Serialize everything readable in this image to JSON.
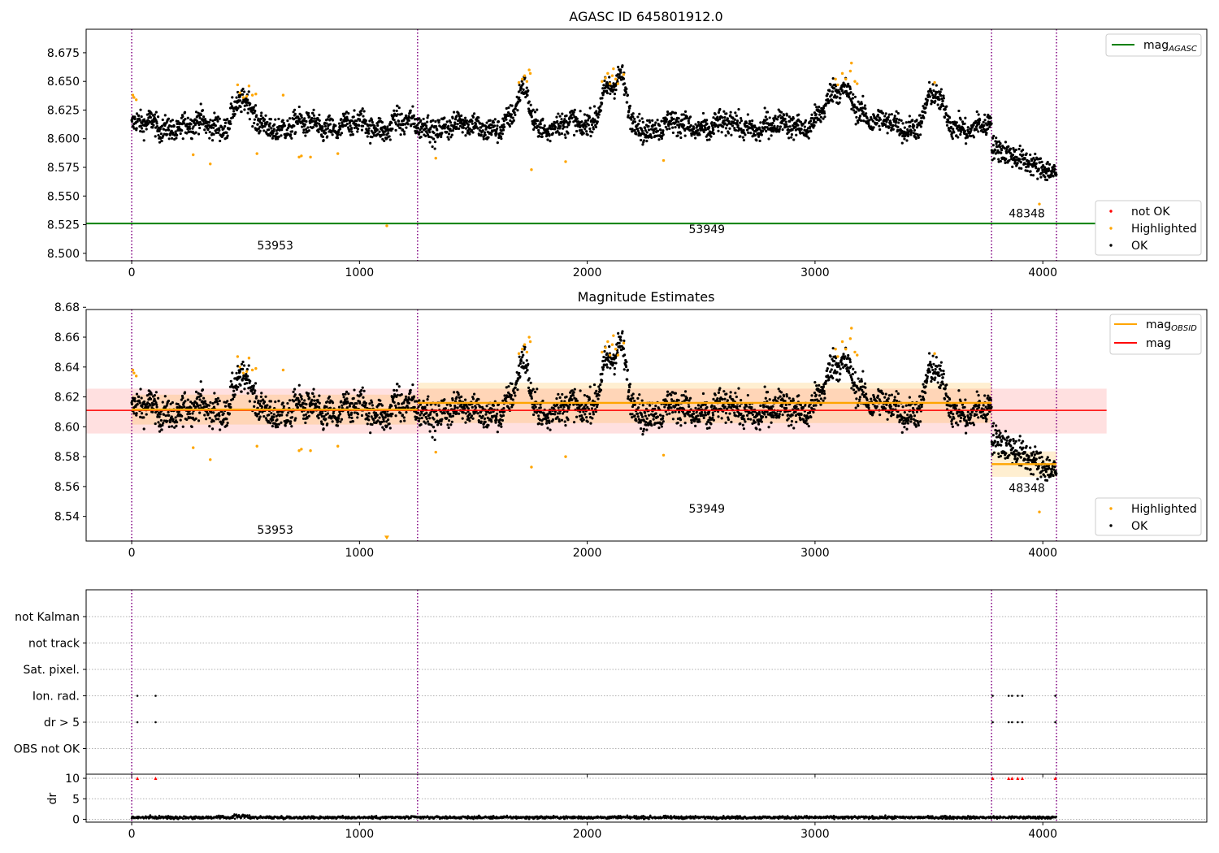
{
  "colors": {
    "ok": "#000000",
    "highlighted": "#ffa500",
    "not_ok": "#ff0000",
    "mag_agasc": "#008000",
    "mag_obsid": "#ffa500",
    "mag": "#ff0000",
    "obsid_line": "#800080",
    "grid": "#b0b0b0"
  },
  "chart_data": [
    {
      "type": "scatter",
      "title": "AGASC ID 645801912.0",
      "xlim": [
        -200,
        4720
      ],
      "ylim": [
        8.4935,
        8.6955
      ],
      "xticks": [
        "0",
        "1000",
        "2000",
        "3000",
        "4000"
      ],
      "yticks": [
        "8.500",
        "8.525",
        "8.550",
        "8.575",
        "8.600",
        "8.625",
        "8.650",
        "8.675"
      ],
      "legends": [
        {
          "placement": "top-right",
          "entries": [
            {
              "label": "mag",
              "sub": "AGASC",
              "kind": "line",
              "color": "#008000"
            }
          ]
        },
        {
          "placement": "bottom-right",
          "entries": [
            {
              "label": "not OK",
              "kind": "dot",
              "color": "#ff0000"
            },
            {
              "label": "Highlighted",
              "kind": "dot",
              "color": "#ffa500"
            },
            {
              "label": "OK",
              "kind": "dot",
              "color": "#000000"
            }
          ]
        }
      ],
      "hlines": [
        {
          "name": "mag_AGASC",
          "y": 8.526,
          "x": [
            -200,
            4280
          ],
          "color": "#008000"
        }
      ],
      "vlines": [
        0,
        1255,
        3775,
        4060
      ],
      "annotations": [
        {
          "text": "53953",
          "x": 630,
          "y": 8.5035
        },
        {
          "text": "53949",
          "x": 2525,
          "y": 8.5175
        },
        {
          "text": "48348",
          "x": 3930,
          "y": 8.5315
        }
      ],
      "highlighted_points": [
        [
          5,
          8.638
        ],
        [
          10,
          8.636
        ],
        [
          20,
          8.634
        ],
        [
          270,
          8.586
        ],
        [
          345,
          8.578
        ],
        [
          465,
          8.647
        ],
        [
          475,
          8.64
        ],
        [
          490,
          8.636
        ],
        [
          505,
          8.637
        ],
        [
          515,
          8.646
        ],
        [
          530,
          8.638
        ],
        [
          545,
          8.639
        ],
        [
          550,
          8.587
        ],
        [
          665,
          8.638
        ],
        [
          735,
          8.584
        ],
        [
          745,
          8.585
        ],
        [
          785,
          8.584
        ],
        [
          905,
          8.587
        ],
        [
          1120,
          8.524
        ],
        [
          1335,
          8.583
        ],
        [
          1700,
          8.649
        ],
        [
          1715,
          8.652
        ],
        [
          1725,
          8.655
        ],
        [
          1735,
          8.65
        ],
        [
          1745,
          8.66
        ],
        [
          1750,
          8.657
        ],
        [
          1755,
          8.573
        ],
        [
          1905,
          8.58
        ],
        [
          2065,
          8.65
        ],
        [
          2080,
          8.653
        ],
        [
          2090,
          8.657
        ],
        [
          2100,
          8.648
        ],
        [
          2110,
          8.655
        ],
        [
          2115,
          8.661
        ],
        [
          2125,
          8.652
        ],
        [
          2135,
          8.648
        ],
        [
          2160,
          8.656
        ],
        [
          2335,
          8.581
        ],
        [
          3090,
          8.652
        ],
        [
          3100,
          8.647
        ],
        [
          3120,
          8.657
        ],
        [
          3135,
          8.652
        ],
        [
          3155,
          8.659
        ],
        [
          3160,
          8.666
        ],
        [
          3175,
          8.65
        ],
        [
          3185,
          8.648
        ],
        [
          3525,
          8.649
        ],
        [
          3985,
          8.543
        ]
      ],
      "not_ok_points": []
    },
    {
      "type": "scatter",
      "title": "Magnitude Estimates",
      "xlim": [
        -200,
        4720
      ],
      "ylim": [
        8.5235,
        8.6785
      ],
      "xticks": [
        "0",
        "1000",
        "2000",
        "3000",
        "4000"
      ],
      "yticks": [
        "8.54",
        "8.56",
        "8.58",
        "8.60",
        "8.62",
        "8.64",
        "8.66",
        "8.68"
      ],
      "legends": [
        {
          "placement": "top-right",
          "entries": [
            {
              "label": "mag",
              "sub": "OBSID",
              "kind": "line",
              "color": "#ffa500"
            },
            {
              "label": "mag",
              "kind": "line",
              "color": "#ff0000"
            }
          ]
        },
        {
          "placement": "bottom-right",
          "entries": [
            {
              "label": "Highlighted",
              "kind": "dot",
              "color": "#ffa500"
            },
            {
              "label": "OK",
              "kind": "dot",
              "color": "#000000"
            }
          ]
        }
      ],
      "bands": [
        {
          "x": [
            -200,
            4280
          ],
          "y": [
            8.5955,
            8.6255
          ],
          "color": "#ff0000",
          "opacity": 0.12
        },
        {
          "x": [
            0,
            1255
          ],
          "y": [
            8.6015,
            8.6215
          ],
          "color": "#ffa500",
          "opacity": 0.18
        },
        {
          "x": [
            1255,
            3775
          ],
          "y": [
            8.6025,
            8.6295
          ],
          "color": "#ffa500",
          "opacity": 0.18
        },
        {
          "x": [
            3775,
            4060
          ],
          "y": [
            8.5665,
            8.5835
          ],
          "color": "#ffa500",
          "opacity": 0.18
        }
      ],
      "hlines": [
        {
          "name": "mag",
          "y": 8.611,
          "x": [
            -200,
            4280
          ],
          "color": "#ff0000"
        },
        {
          "name": "mag_OBSID 53953",
          "y": 8.6115,
          "x": [
            0,
            1255
          ],
          "color": "#ffa500"
        },
        {
          "name": "mag_OBSID 53949",
          "y": 8.616,
          "x": [
            1255,
            3775
          ],
          "color": "#ffa500"
        },
        {
          "name": "mag_OBSID 48348",
          "y": 8.575,
          "x": [
            3775,
            4060
          ],
          "color": "#ffa500"
        }
      ],
      "vlines": [
        0,
        1255,
        3775,
        4060
      ],
      "annotations": [
        {
          "text": "53953",
          "x": 630,
          "y": 8.5285
        },
        {
          "text": "53949",
          "x": 2525,
          "y": 8.5425
        },
        {
          "text": "48348",
          "x": 3930,
          "y": 8.5565
        }
      ],
      "highlighted_points": [
        [
          5,
          8.638
        ],
        [
          10,
          8.636
        ],
        [
          20,
          8.634
        ],
        [
          270,
          8.586
        ],
        [
          345,
          8.578
        ],
        [
          465,
          8.647
        ],
        [
          475,
          8.64
        ],
        [
          490,
          8.636
        ],
        [
          505,
          8.637
        ],
        [
          515,
          8.646
        ],
        [
          530,
          8.638
        ],
        [
          545,
          8.639
        ],
        [
          550,
          8.587
        ],
        [
          665,
          8.638
        ],
        [
          735,
          8.584
        ],
        [
          745,
          8.585
        ],
        [
          785,
          8.584
        ],
        [
          905,
          8.587
        ],
        [
          1335,
          8.583
        ],
        [
          1700,
          8.649
        ],
        [
          1715,
          8.652
        ],
        [
          1725,
          8.655
        ],
        [
          1735,
          8.65
        ],
        [
          1745,
          8.66
        ],
        [
          1750,
          8.657
        ],
        [
          1755,
          8.573
        ],
        [
          1905,
          8.58
        ],
        [
          2065,
          8.65
        ],
        [
          2080,
          8.653
        ],
        [
          2090,
          8.657
        ],
        [
          2100,
          8.648
        ],
        [
          2110,
          8.655
        ],
        [
          2115,
          8.661
        ],
        [
          2125,
          8.652
        ],
        [
          2135,
          8.648
        ],
        [
          2160,
          8.656
        ],
        [
          2335,
          8.581
        ],
        [
          3090,
          8.652
        ],
        [
          3100,
          8.647
        ],
        [
          3120,
          8.657
        ],
        [
          3135,
          8.652
        ],
        [
          3155,
          8.659
        ],
        [
          3160,
          8.666
        ],
        [
          3175,
          8.65
        ],
        [
          3185,
          8.648
        ],
        [
          3525,
          8.649
        ],
        [
          3985,
          8.543
        ]
      ],
      "clipped_marker": {
        "x": 1120,
        "y": 8.5255,
        "symbol": "down-triangle",
        "color": "#ffa500"
      }
    },
    {
      "type": "scatter",
      "title": "",
      "xlim": [
        -200,
        4720
      ],
      "xticks": [
        "0",
        "1000",
        "2000",
        "3000",
        "4000"
      ],
      "flag_rows": [
        "not Kalman",
        "not track",
        "Sat. pixel.",
        "Ion. rad.",
        "dr > 5",
        "OBS not OK"
      ],
      "flag_ylim": [
        -0.5,
        6.5
      ],
      "flag_points": {
        "Ion. rad.": [
          25,
          105,
          3780,
          3850,
          3865,
          3890,
          3910,
          4055
        ],
        "dr > 5": [
          25,
          105,
          3780,
          3850,
          3865,
          3890,
          3910,
          4055
        ]
      },
      "dr_ylabel": "dr",
      "dr_yticks": [
        "0",
        "5",
        "10"
      ],
      "dr_ylim": [
        -0.7,
        11.0
      ],
      "dr_clipped_points": [
        25,
        105,
        3780,
        3850,
        3865,
        3890,
        3910,
        4055
      ],
      "dr_clip_value": 10,
      "vlines": [
        0,
        1255,
        3775,
        4060
      ]
    }
  ]
}
